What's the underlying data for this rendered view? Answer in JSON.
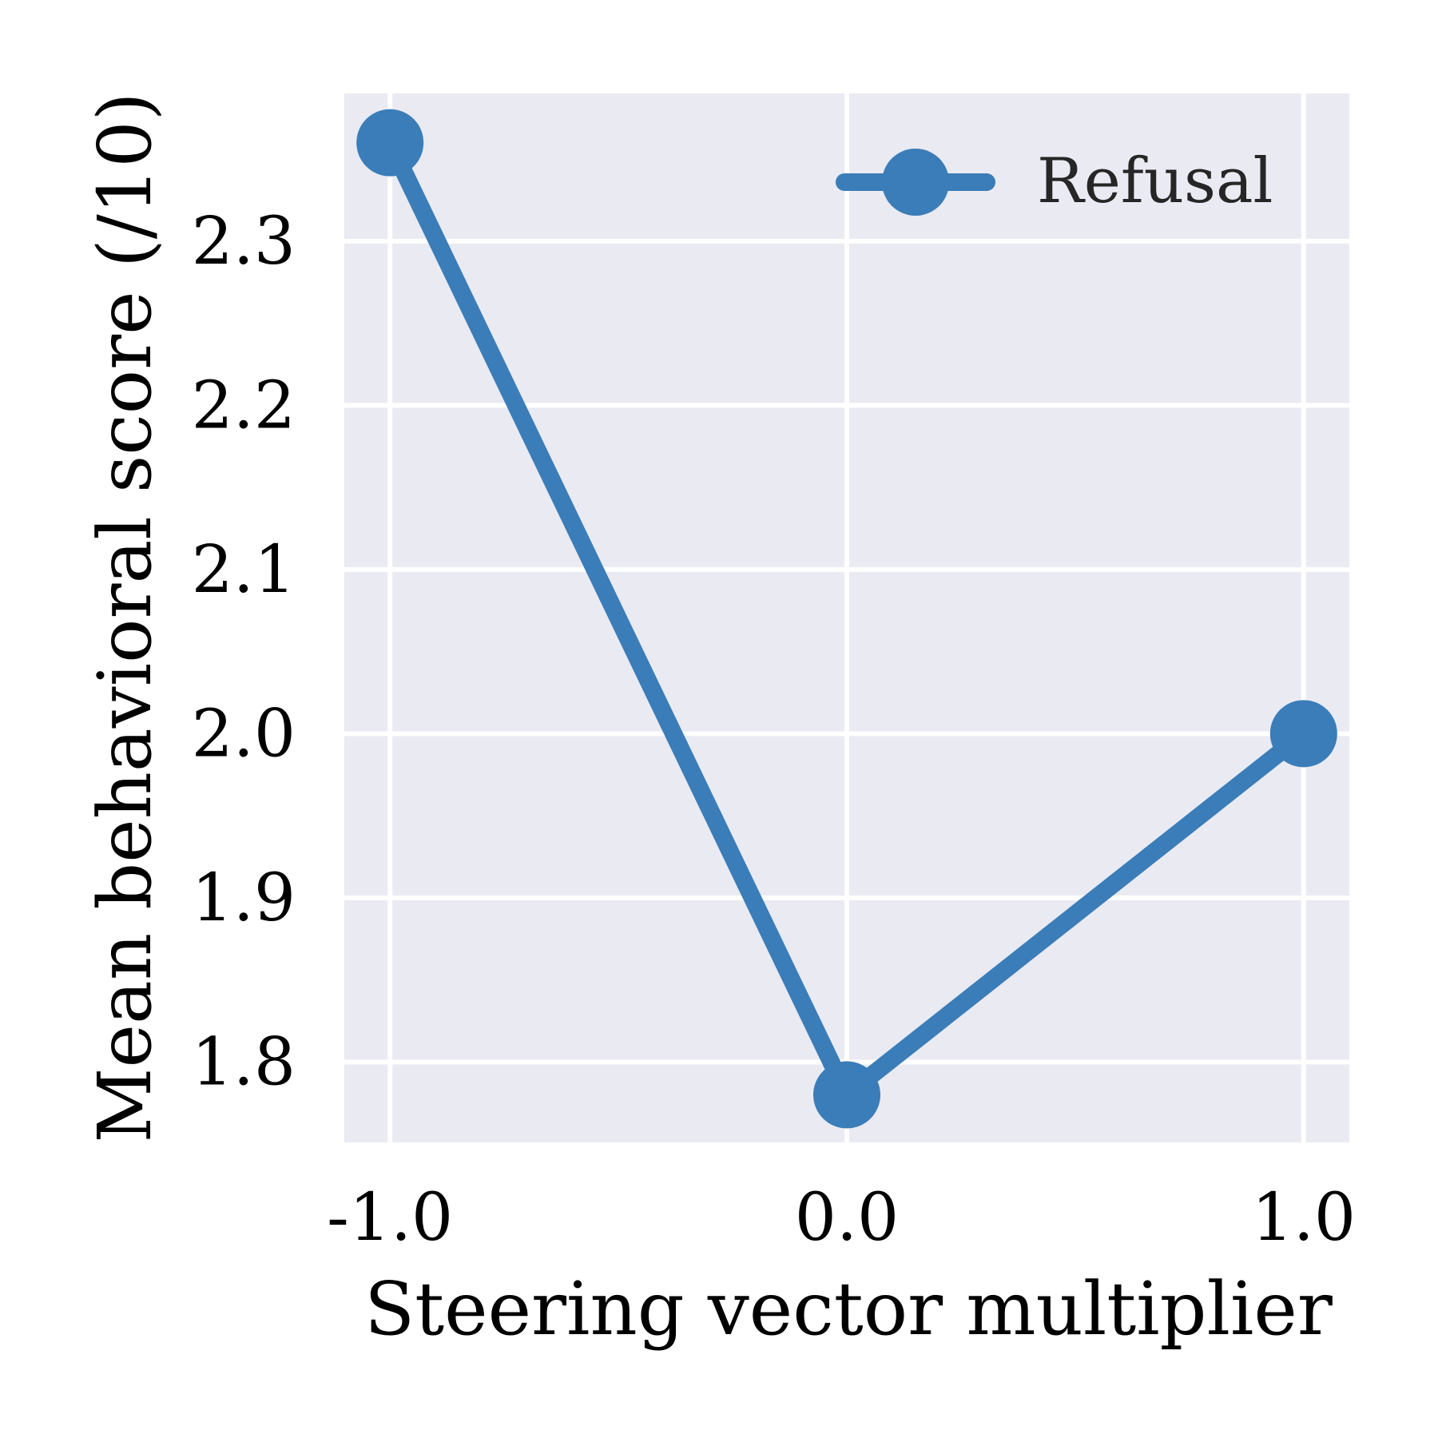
{
  "chart_data": {
    "type": "line",
    "title": "",
    "xlabel": "Steering vector multiplier",
    "ylabel": "Mean behavioral score (/10)",
    "x": [
      -1.0,
      0.0,
      1.0
    ],
    "x_tick_labels": [
      "-1.0",
      "0.0",
      "1.0"
    ],
    "y_ticks": [
      1.8,
      1.9,
      2.0,
      2.1,
      2.2,
      2.3
    ],
    "y_tick_labels": [
      "1.8",
      "1.9",
      "2.0",
      "2.1",
      "2.2",
      "2.3"
    ],
    "xlim": [
      -1.1,
      1.1
    ],
    "ylim": [
      1.751,
      2.39
    ],
    "grid": true,
    "legend_position": "top-right",
    "series": [
      {
        "name": "Refusal",
        "values": [
          2.36,
          1.78,
          2.0
        ],
        "color": "#3a7db8",
        "marker": "circle"
      }
    ],
    "background_color": "#eaeaf2",
    "grid_color": "#ffffff"
  }
}
